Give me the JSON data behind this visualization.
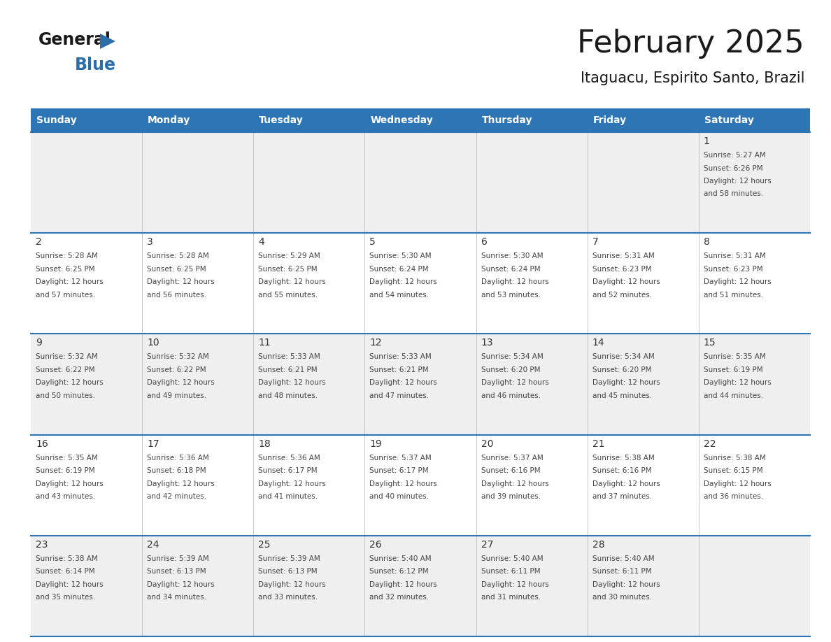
{
  "title": "February 2025",
  "subtitle": "Itaguacu, Espirito Santo, Brazil",
  "header_bg": "#2E75B6",
  "header_text_color": "#FFFFFF",
  "day_names": [
    "Sunday",
    "Monday",
    "Tuesday",
    "Wednesday",
    "Thursday",
    "Friday",
    "Saturday"
  ],
  "cell_bg_odd": "#EFEFEF",
  "cell_bg_even": "#FFFFFF",
  "divider_color": "#2E75B6",
  "text_color": "#444444",
  "num_color": "#333333",
  "logo_general_color": "#1a1a1a",
  "logo_blue_color": "#2A6EAA",
  "title_color": "#1a1a1a",
  "days": [
    {
      "day": 1,
      "col": 6,
      "row": 0,
      "sunrise": "5:27 AM",
      "sunset": "6:26 PM",
      "daylight_hours": 12,
      "daylight_minutes": 58
    },
    {
      "day": 2,
      "col": 0,
      "row": 1,
      "sunrise": "5:28 AM",
      "sunset": "6:25 PM",
      "daylight_hours": 12,
      "daylight_minutes": 57
    },
    {
      "day": 3,
      "col": 1,
      "row": 1,
      "sunrise": "5:28 AM",
      "sunset": "6:25 PM",
      "daylight_hours": 12,
      "daylight_minutes": 56
    },
    {
      "day": 4,
      "col": 2,
      "row": 1,
      "sunrise": "5:29 AM",
      "sunset": "6:25 PM",
      "daylight_hours": 12,
      "daylight_minutes": 55
    },
    {
      "day": 5,
      "col": 3,
      "row": 1,
      "sunrise": "5:30 AM",
      "sunset": "6:24 PM",
      "daylight_hours": 12,
      "daylight_minutes": 54
    },
    {
      "day": 6,
      "col": 4,
      "row": 1,
      "sunrise": "5:30 AM",
      "sunset": "6:24 PM",
      "daylight_hours": 12,
      "daylight_minutes": 53
    },
    {
      "day": 7,
      "col": 5,
      "row": 1,
      "sunrise": "5:31 AM",
      "sunset": "6:23 PM",
      "daylight_hours": 12,
      "daylight_minutes": 52
    },
    {
      "day": 8,
      "col": 6,
      "row": 1,
      "sunrise": "5:31 AM",
      "sunset": "6:23 PM",
      "daylight_hours": 12,
      "daylight_minutes": 51
    },
    {
      "day": 9,
      "col": 0,
      "row": 2,
      "sunrise": "5:32 AM",
      "sunset": "6:22 PM",
      "daylight_hours": 12,
      "daylight_minutes": 50
    },
    {
      "day": 10,
      "col": 1,
      "row": 2,
      "sunrise": "5:32 AM",
      "sunset": "6:22 PM",
      "daylight_hours": 12,
      "daylight_minutes": 49
    },
    {
      "day": 11,
      "col": 2,
      "row": 2,
      "sunrise": "5:33 AM",
      "sunset": "6:21 PM",
      "daylight_hours": 12,
      "daylight_minutes": 48
    },
    {
      "day": 12,
      "col": 3,
      "row": 2,
      "sunrise": "5:33 AM",
      "sunset": "6:21 PM",
      "daylight_hours": 12,
      "daylight_minutes": 47
    },
    {
      "day": 13,
      "col": 4,
      "row": 2,
      "sunrise": "5:34 AM",
      "sunset": "6:20 PM",
      "daylight_hours": 12,
      "daylight_minutes": 46
    },
    {
      "day": 14,
      "col": 5,
      "row": 2,
      "sunrise": "5:34 AM",
      "sunset": "6:20 PM",
      "daylight_hours": 12,
      "daylight_minutes": 45
    },
    {
      "day": 15,
      "col": 6,
      "row": 2,
      "sunrise": "5:35 AM",
      "sunset": "6:19 PM",
      "daylight_hours": 12,
      "daylight_minutes": 44
    },
    {
      "day": 16,
      "col": 0,
      "row": 3,
      "sunrise": "5:35 AM",
      "sunset": "6:19 PM",
      "daylight_hours": 12,
      "daylight_minutes": 43
    },
    {
      "day": 17,
      "col": 1,
      "row": 3,
      "sunrise": "5:36 AM",
      "sunset": "6:18 PM",
      "daylight_hours": 12,
      "daylight_minutes": 42
    },
    {
      "day": 18,
      "col": 2,
      "row": 3,
      "sunrise": "5:36 AM",
      "sunset": "6:17 PM",
      "daylight_hours": 12,
      "daylight_minutes": 41
    },
    {
      "day": 19,
      "col": 3,
      "row": 3,
      "sunrise": "5:37 AM",
      "sunset": "6:17 PM",
      "daylight_hours": 12,
      "daylight_minutes": 40
    },
    {
      "day": 20,
      "col": 4,
      "row": 3,
      "sunrise": "5:37 AM",
      "sunset": "6:16 PM",
      "daylight_hours": 12,
      "daylight_minutes": 39
    },
    {
      "day": 21,
      "col": 5,
      "row": 3,
      "sunrise": "5:38 AM",
      "sunset": "6:16 PM",
      "daylight_hours": 12,
      "daylight_minutes": 37
    },
    {
      "day": 22,
      "col": 6,
      "row": 3,
      "sunrise": "5:38 AM",
      "sunset": "6:15 PM",
      "daylight_hours": 12,
      "daylight_minutes": 36
    },
    {
      "day": 23,
      "col": 0,
      "row": 4,
      "sunrise": "5:38 AM",
      "sunset": "6:14 PM",
      "daylight_hours": 12,
      "daylight_minutes": 35
    },
    {
      "day": 24,
      "col": 1,
      "row": 4,
      "sunrise": "5:39 AM",
      "sunset": "6:13 PM",
      "daylight_hours": 12,
      "daylight_minutes": 34
    },
    {
      "day": 25,
      "col": 2,
      "row": 4,
      "sunrise": "5:39 AM",
      "sunset": "6:13 PM",
      "daylight_hours": 12,
      "daylight_minutes": 33
    },
    {
      "day": 26,
      "col": 3,
      "row": 4,
      "sunrise": "5:40 AM",
      "sunset": "6:12 PM",
      "daylight_hours": 12,
      "daylight_minutes": 32
    },
    {
      "day": 27,
      "col": 4,
      "row": 4,
      "sunrise": "5:40 AM",
      "sunset": "6:11 PM",
      "daylight_hours": 12,
      "daylight_minutes": 31
    },
    {
      "day": 28,
      "col": 5,
      "row": 4,
      "sunrise": "5:40 AM",
      "sunset": "6:11 PM",
      "daylight_hours": 12,
      "daylight_minutes": 30
    }
  ]
}
